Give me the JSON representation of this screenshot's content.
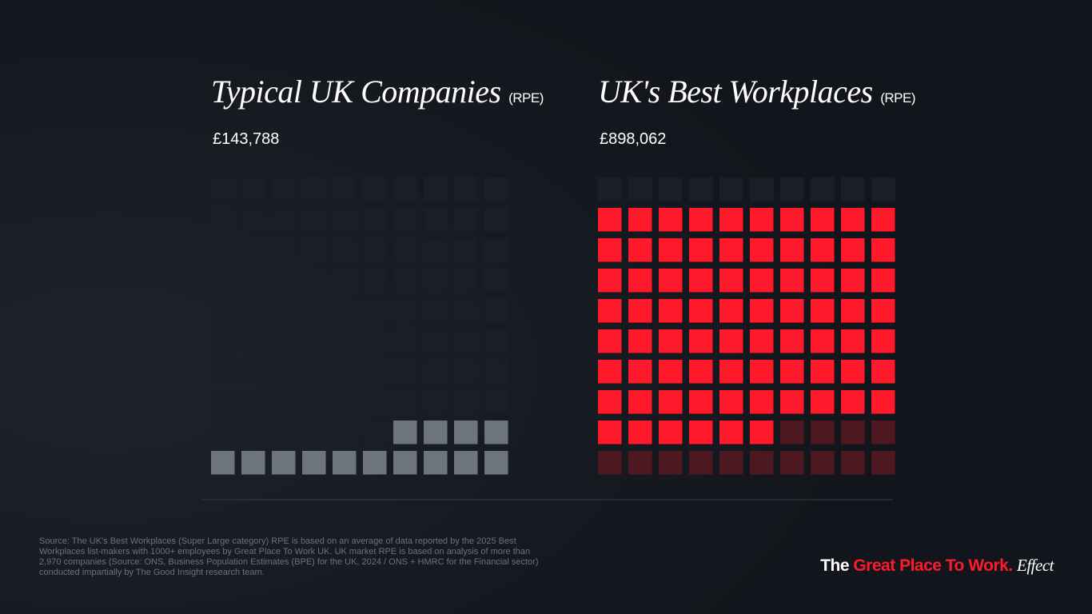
{
  "chart_data": [
    {
      "type": "waffle",
      "title": "Typical UK Companies",
      "unit": "(RPE)",
      "values": [
        143788
      ],
      "value_labels": [
        "£143,788"
      ],
      "filled": 14,
      "total": 100,
      "columns": 10,
      "color": "#6b757b",
      "empty_color": "#1b1e26"
    },
    {
      "type": "waffle",
      "title": "UK's Best Workplaces",
      "unit": "(RPE)",
      "values": [
        898062
      ],
      "value_labels": [
        "£898,062"
      ],
      "baseline": 14,
      "baseline_color": "#4d1820",
      "filled": 76,
      "total": 100,
      "columns": 10,
      "color": "#ff1a2b",
      "empty_color": "#1b1e26"
    }
  ],
  "source": [
    "Source: The UK's Best Workplaces (Super Large category) RPE is based on an average of data reported by the 2025 Best",
    "Workplaces list-makers with 1000+ employees by Great Place To Work UK. UK market RPE is based on analysis of more than",
    "2,970 companies (Source: ONS, Business Population Estimates (BPE) for the UK, 2024 / ONS + HMRC for the Financial sector)",
    "conducted impartially by The Good Insight research team."
  ],
  "brand": {
    "prefix": "The",
    "name": "Great Place To Work.",
    "suffix": "Effect"
  }
}
